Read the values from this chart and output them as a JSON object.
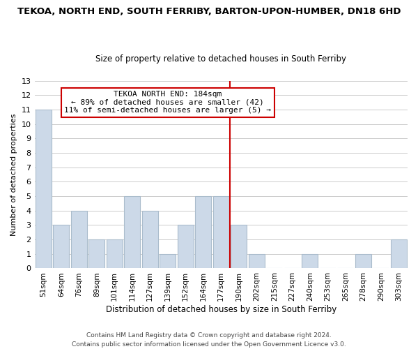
{
  "title": "TEKOA, NORTH END, SOUTH FERRIBY, BARTON-UPON-HUMBER, DN18 6HD",
  "subtitle": "Size of property relative to detached houses in South Ferriby",
  "xlabel": "Distribution of detached houses by size in South Ferriby",
  "ylabel": "Number of detached properties",
  "footer_line1": "Contains HM Land Registry data © Crown copyright and database right 2024.",
  "footer_line2": "Contains public sector information licensed under the Open Government Licence v3.0.",
  "bar_labels": [
    "51sqm",
    "64sqm",
    "76sqm",
    "89sqm",
    "101sqm",
    "114sqm",
    "127sqm",
    "139sqm",
    "152sqm",
    "164sqm",
    "177sqm",
    "190sqm",
    "202sqm",
    "215sqm",
    "227sqm",
    "240sqm",
    "253sqm",
    "265sqm",
    "278sqm",
    "290sqm",
    "303sqm"
  ],
  "bar_values": [
    11,
    3,
    4,
    2,
    2,
    5,
    4,
    1,
    3,
    5,
    5,
    3,
    1,
    0,
    0,
    1,
    0,
    0,
    1,
    0,
    2
  ],
  "bar_color": "#ccd9e8",
  "bar_edge_color": "#aabccc",
  "marker_line_index": 10,
  "annotation_title": "TEKOA NORTH END: 184sqm",
  "annotation_line1": "← 89% of detached houses are smaller (42)",
  "annotation_line2": "11% of semi-detached houses are larger (5) →",
  "annotation_box_color": "#ffffff",
  "annotation_box_edge_color": "#cc0000",
  "marker_line_color": "#cc0000",
  "ylim": [
    0,
    13
  ],
  "yticks": [
    0,
    1,
    2,
    3,
    4,
    5,
    6,
    7,
    8,
    9,
    10,
    11,
    12,
    13
  ],
  "background_color": "#ffffff",
  "grid_color": "#cccccc",
  "title_fontsize": 9.5,
  "subtitle_fontsize": 8.5,
  "ylabel_fontsize": 8.0,
  "xlabel_fontsize": 8.5,
  "tick_fontsize": 8.0,
  "xtick_fontsize": 7.5,
  "footer_fontsize": 6.5,
  "annotation_fontsize": 8.0
}
